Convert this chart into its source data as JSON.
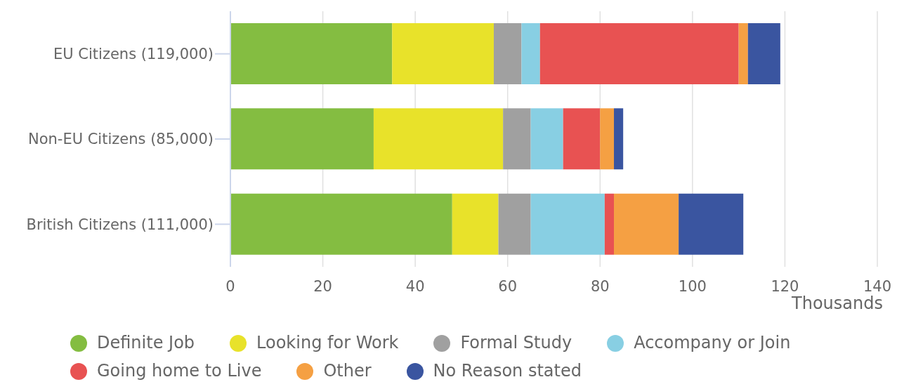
{
  "chart_data": {
    "type": "bar",
    "orientation": "horizontal",
    "stacked": true,
    "categories": [
      "EU Citizens (119,000)",
      "Non-EU Citizens (85,000)",
      "British Citizens (111,000)"
    ],
    "series": [
      {
        "name": "Definite Job",
        "color": "#84bd41",
        "values": [
          35,
          31,
          48
        ]
      },
      {
        "name": "Looking for Work",
        "color": "#e8e22a",
        "values": [
          22,
          28,
          10
        ]
      },
      {
        "name": "Formal Study",
        "color": "#a0a0a0",
        "values": [
          6,
          6,
          7
        ]
      },
      {
        "name": "Accompany or Join",
        "color": "#88cfe3",
        "values": [
          4,
          7,
          16
        ]
      },
      {
        "name": "Going home to Live",
        "color": "#e85252",
        "values": [
          43,
          8,
          2
        ]
      },
      {
        "name": "Other",
        "color": "#f5a043",
        "values": [
          2,
          3,
          14
        ]
      },
      {
        "name": "No Reason stated",
        "color": "#3a55a0",
        "values": [
          7,
          2,
          14
        ]
      }
    ],
    "xlim": [
      0,
      140
    ],
    "xticks": [
      0,
      20,
      40,
      60,
      80,
      100,
      120,
      140
    ],
    "xlabel": "Thousands",
    "grid": "x",
    "legend": "bottom"
  }
}
